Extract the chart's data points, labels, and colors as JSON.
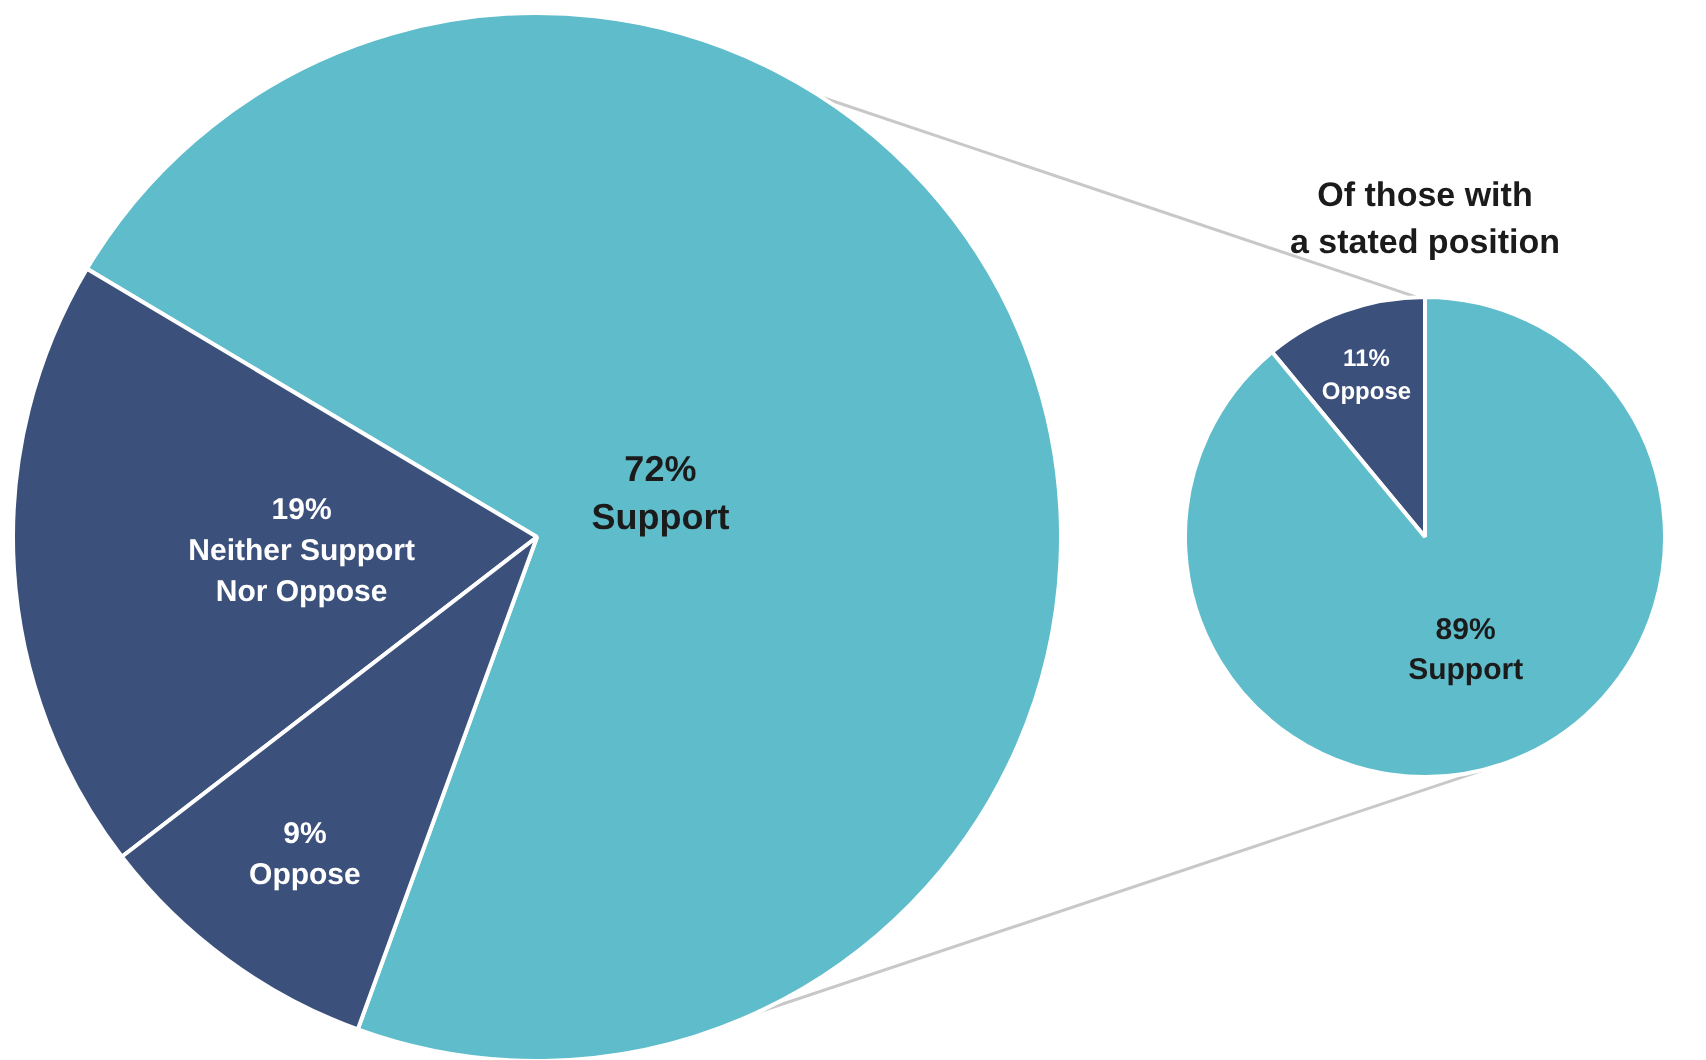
{
  "chart_data": [
    {
      "type": "pie",
      "categories": [
        "Support",
        "Neither Support Nor Oppose",
        "Oppose"
      ],
      "values": [
        72,
        19,
        9
      ],
      "colors": [
        "#5fbccb",
        "#3c507c",
        "#3c507c"
      ],
      "value_labels": [
        "72%",
        "19%",
        "9%"
      ]
    },
    {
      "type": "pie",
      "title": "Of those with a stated position",
      "categories": [
        "Oppose",
        "Support"
      ],
      "values": [
        11,
        89
      ],
      "colors": [
        "#3c507c",
        "#5fbccb"
      ],
      "value_labels": [
        "11%",
        "89%"
      ]
    }
  ]
}
